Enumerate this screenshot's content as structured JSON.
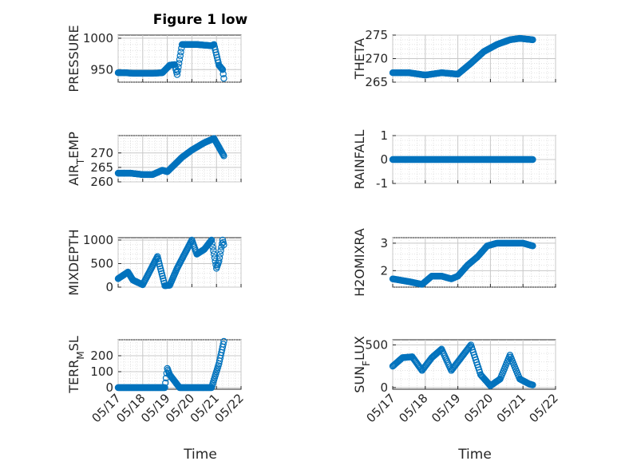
{
  "figure": {
    "title": "Figure 1 low",
    "xlabel": "Time"
  },
  "chart_data": [
    {
      "type": "scatter",
      "panel": "PRESSURE",
      "ylabel": "PRESSURE",
      "ylim": [
        930,
        1005
      ],
      "yticks": [
        950,
        1000
      ],
      "xlim": [
        "05/17",
        "05/22"
      ],
      "xticks": [
        "05/17",
        "05/18",
        "05/19",
        "05/20",
        "05/21",
        "05/22"
      ],
      "show_xticks": false,
      "x_days": [
        0,
        0.3,
        0.6,
        1.0,
        1.4,
        1.8,
        2.1,
        2.3,
        2.4,
        2.6,
        3.2,
        3.8,
        3.9,
        4.1,
        4.25,
        4.3
      ],
      "y": [
        945,
        945,
        944,
        944,
        944,
        945,
        957,
        958,
        942,
        990,
        990,
        988,
        990,
        957,
        950,
        936
      ],
      "grid": true,
      "marker": "open-circle",
      "color": "#0072BD"
    },
    {
      "type": "scatter",
      "panel": "THETA",
      "ylabel": "THETA",
      "ylim": [
        265,
        275
      ],
      "yticks": [
        265,
        270,
        275
      ],
      "xlim": [
        "05/17",
        "05/22"
      ],
      "xticks": [
        "05/17",
        "05/18",
        "05/19",
        "05/20",
        "05/21",
        "05/22"
      ],
      "show_xticks": false,
      "x_days": [
        0,
        0.5,
        1.0,
        1.5,
        2.0,
        2.4,
        2.8,
        3.2,
        3.6,
        3.9,
        4.3
      ],
      "y": [
        267,
        267,
        266.5,
        267,
        266.7,
        269,
        271.5,
        273,
        274,
        274.3,
        274
      ],
      "grid": true,
      "marker": "open-circle",
      "color": "#0072BD"
    },
    {
      "type": "scatter",
      "panel": "AIR_TEMP",
      "ylabel": "AIR_TEMP",
      "ylim": [
        260,
        276
      ],
      "yticks": [
        260,
        265,
        270
      ],
      "xlim": [
        "05/17",
        "05/22"
      ],
      "xticks": [
        "05/17",
        "05/18",
        "05/19",
        "05/20",
        "05/21",
        "05/22"
      ],
      "show_xticks": false,
      "x_days": [
        0,
        0.5,
        1.0,
        1.4,
        1.8,
        2.0,
        2.3,
        2.6,
        3.0,
        3.5,
        3.9,
        4.1,
        4.3
      ],
      "y": [
        263,
        263,
        262.5,
        262.5,
        264,
        263.5,
        266,
        268.5,
        271,
        273.5,
        275,
        272,
        269
      ],
      "grid": true,
      "marker": "open-circle",
      "color": "#0072BD"
    },
    {
      "type": "scatter",
      "panel": "RAINFALL",
      "ylabel": "RAINFALL",
      "ylim": [
        -1,
        1
      ],
      "yticks": [
        -1,
        0,
        1
      ],
      "xlim": [
        "05/17",
        "05/22"
      ],
      "xticks": [
        "05/17",
        "05/18",
        "05/19",
        "05/20",
        "05/21",
        "05/22"
      ],
      "show_xticks": false,
      "x_days": [
        0,
        0.5,
        1.0,
        1.5,
        2.0,
        2.5,
        3.0,
        3.5,
        4.0,
        4.3
      ],
      "y": [
        0,
        0,
        0,
        0,
        0,
        0,
        0,
        0,
        0,
        0
      ],
      "grid": true,
      "marker": "open-circle",
      "color": "#0072BD"
    },
    {
      "type": "scatter",
      "panel": "MIXDEPTH",
      "ylabel": "MIXDEPTH",
      "ylim": [
        0,
        1050
      ],
      "yticks": [
        0,
        500,
        1000
      ],
      "xlim": [
        "05/17",
        "05/22"
      ],
      "xticks": [
        "05/17",
        "05/18",
        "05/19",
        "05/20",
        "05/21",
        "05/22"
      ],
      "show_xticks": false,
      "x_days": [
        0,
        0.4,
        0.6,
        1.0,
        1.3,
        1.6,
        1.9,
        2.1,
        2.4,
        2.7,
        3.0,
        3.2,
        3.5,
        3.8,
        4.0,
        4.1,
        4.25,
        4.3
      ],
      "y": [
        180,
        320,
        150,
        50,
        350,
        650,
        30,
        40,
        400,
        700,
        1000,
        700,
        800,
        1000,
        400,
        550,
        1000,
        900
      ],
      "grid": true,
      "marker": "open-circle",
      "color": "#0072BD"
    },
    {
      "type": "scatter",
      "panel": "H2OMIXRA",
      "ylabel": "H2OMIXRA",
      "ylim": [
        1.4,
        3.2
      ],
      "yticks": [
        2,
        3
      ],
      "xlim": [
        "05/17",
        "05/22"
      ],
      "xticks": [
        "05/17",
        "05/18",
        "05/19",
        "05/20",
        "05/21",
        "05/22"
      ],
      "show_xticks": false,
      "x_days": [
        0,
        0.5,
        0.9,
        1.2,
        1.5,
        1.8,
        2.0,
        2.3,
        2.6,
        2.9,
        3.2,
        3.6,
        4.0,
        4.3
      ],
      "y": [
        1.7,
        1.6,
        1.5,
        1.8,
        1.8,
        1.7,
        1.8,
        2.2,
        2.5,
        2.9,
        3.0,
        3.0,
        3.0,
        2.9
      ],
      "grid": true,
      "marker": "open-circle",
      "color": "#0072BD"
    },
    {
      "type": "scatter",
      "panel": "TERR_MSL",
      "ylabel": "TERR_MSL",
      "ylim": [
        -10,
        300
      ],
      "yticks": [
        0,
        100,
        200
      ],
      "xlim": [
        "05/17",
        "05/22"
      ],
      "xticks": [
        "05/17",
        "05/18",
        "05/19",
        "05/20",
        "05/21",
        "05/22"
      ],
      "show_xticks": true,
      "x_days": [
        0,
        0.5,
        1.0,
        1.5,
        1.9,
        2.0,
        2.1,
        2.2,
        2.5,
        3.0,
        3.5,
        3.8,
        4.0,
        4.1,
        4.2,
        4.3
      ],
      "y": [
        0,
        0,
        0,
        0,
        0,
        120,
        80,
        60,
        0,
        0,
        0,
        0,
        100,
        150,
        220,
        290
      ],
      "grid": true,
      "marker": "open-circle",
      "color": "#0072BD"
    },
    {
      "type": "scatter",
      "panel": "SUN_FLUX",
      "ylabel": "SUN_FLUX",
      "ylim": [
        -20,
        560
      ],
      "yticks": [
        0,
        500
      ],
      "xlim": [
        "05/17",
        "05/22"
      ],
      "xticks": [
        "05/17",
        "05/18",
        "05/19",
        "05/20",
        "05/21",
        "05/22"
      ],
      "show_xticks": true,
      "x_days": [
        0,
        0.3,
        0.6,
        0.9,
        1.2,
        1.5,
        1.8,
        2.1,
        2.4,
        2.7,
        3.0,
        3.3,
        3.6,
        3.9,
        4.2,
        4.3
      ],
      "y": [
        250,
        350,
        360,
        200,
        350,
        450,
        200,
        350,
        500,
        150,
        20,
        100,
        380,
        100,
        40,
        30
      ],
      "grid": true,
      "marker": "open-circle",
      "color": "#0072BD"
    }
  ]
}
